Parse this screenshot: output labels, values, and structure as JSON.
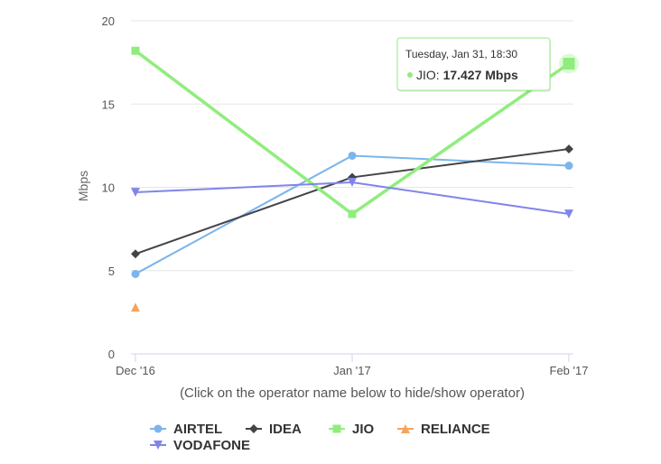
{
  "chart_data": {
    "type": "line",
    "categories": [
      "Dec '16",
      "Jan '17",
      "Feb '17"
    ],
    "ylabel": "Mbps",
    "ylim": [
      0,
      20
    ],
    "yticks": [
      0,
      5,
      10,
      15,
      20
    ],
    "grid": true,
    "subtitle": "(Click on the operator name below to hide/show operator)",
    "legend_position": "bottom",
    "series": [
      {
        "name": "AIRTEL",
        "color": "#7cb5ec",
        "marker": "circle",
        "values": [
          4.8,
          11.9,
          11.3
        ]
      },
      {
        "name": "IDEA",
        "color": "#434348",
        "marker": "diamond",
        "values": [
          6.0,
          10.6,
          12.3
        ]
      },
      {
        "name": "JIO",
        "color": "#90ed7d",
        "marker": "square",
        "values": [
          18.2,
          8.4,
          17.427
        ]
      },
      {
        "name": "RELIANCE",
        "color": "#f7a35c",
        "marker": "triangle",
        "values": [
          2.8,
          null,
          null
        ]
      },
      {
        "name": "VODAFONE",
        "color": "#8085e9",
        "marker": "triangle-down",
        "values": [
          9.7,
          10.3,
          8.4
        ]
      }
    ],
    "tooltip": {
      "header": "Tuesday, Jan 31, 18:30",
      "series_label": "JIO:",
      "value_text": "17.427 Mbps",
      "series_index": 2,
      "point_index": 2
    }
  }
}
